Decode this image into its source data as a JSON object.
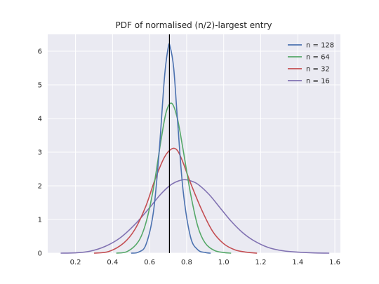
{
  "chart_data": {
    "type": "line",
    "title": "PDF of normalised (n/2)-largest entry",
    "xlabel": "",
    "ylabel": "",
    "xlim": [
      0.05,
      1.63
    ],
    "ylim": [
      0,
      6.5
    ],
    "x_ticks": [
      0.2,
      0.4,
      0.6,
      0.8,
      1.0,
      1.2,
      1.4,
      1.6
    ],
    "x_tick_labels": [
      "0.2",
      "0.4",
      "0.6",
      "0.8",
      "1.0",
      "1.2",
      "1.4",
      "1.6"
    ],
    "y_ticks": [
      0,
      1,
      2,
      3,
      4,
      5,
      6
    ],
    "y_tick_labels": [
      "0",
      "1",
      "2",
      "3",
      "4",
      "5",
      "6"
    ],
    "grid": true,
    "legend_position": "top-right",
    "vertical_line": {
      "x": 0.707,
      "color": "#000000"
    },
    "series": [
      {
        "name": "n = 128",
        "color": "#4c72b0",
        "x": [
          0.5,
          0.54,
          0.58,
          0.62,
          0.65,
          0.68,
          0.7,
          0.71,
          0.73,
          0.75,
          0.78,
          0.82,
          0.86,
          0.9,
          0.93
        ],
        "y": [
          0.0,
          0.03,
          0.25,
          1.2,
          2.9,
          5.2,
          6.1,
          6.15,
          5.5,
          4.0,
          1.9,
          0.5,
          0.1,
          0.02,
          0.0
        ]
      },
      {
        "name": "n = 64",
        "color": "#55a868",
        "x": [
          0.42,
          0.48,
          0.54,
          0.58,
          0.62,
          0.66,
          0.69,
          0.72,
          0.75,
          0.78,
          0.82,
          0.86,
          0.9,
          0.95,
          1.0,
          1.04
        ],
        "y": [
          0.0,
          0.05,
          0.35,
          0.9,
          1.9,
          3.3,
          4.2,
          4.45,
          4.0,
          3.1,
          1.8,
          0.8,
          0.3,
          0.08,
          0.02,
          0.0
        ]
      },
      {
        "name": "n = 32",
        "color": "#c44e52",
        "x": [
          0.3,
          0.38,
          0.46,
          0.52,
          0.58,
          0.63,
          0.68,
          0.72,
          0.75,
          0.78,
          0.82,
          0.88,
          0.94,
          1.0,
          1.06,
          1.12,
          1.18
        ],
        "y": [
          0.0,
          0.05,
          0.3,
          0.7,
          1.4,
          2.2,
          2.85,
          3.1,
          3.05,
          2.7,
          2.1,
          1.3,
          0.65,
          0.28,
          0.1,
          0.03,
          0.0
        ]
      },
      {
        "name": "n = 16",
        "color": "#8172b2",
        "x": [
          0.12,
          0.2,
          0.28,
          0.36,
          0.44,
          0.52,
          0.6,
          0.66,
          0.72,
          0.78,
          0.82,
          0.86,
          0.92,
          0.98,
          1.04,
          1.1,
          1.16,
          1.24,
          1.32,
          1.4,
          1.48,
          1.57
        ],
        "y": [
          0.0,
          0.01,
          0.06,
          0.2,
          0.45,
          0.85,
          1.35,
          1.75,
          2.05,
          2.18,
          2.15,
          2.05,
          1.75,
          1.35,
          0.95,
          0.62,
          0.38,
          0.17,
          0.07,
          0.03,
          0.01,
          0.0
        ]
      }
    ]
  }
}
